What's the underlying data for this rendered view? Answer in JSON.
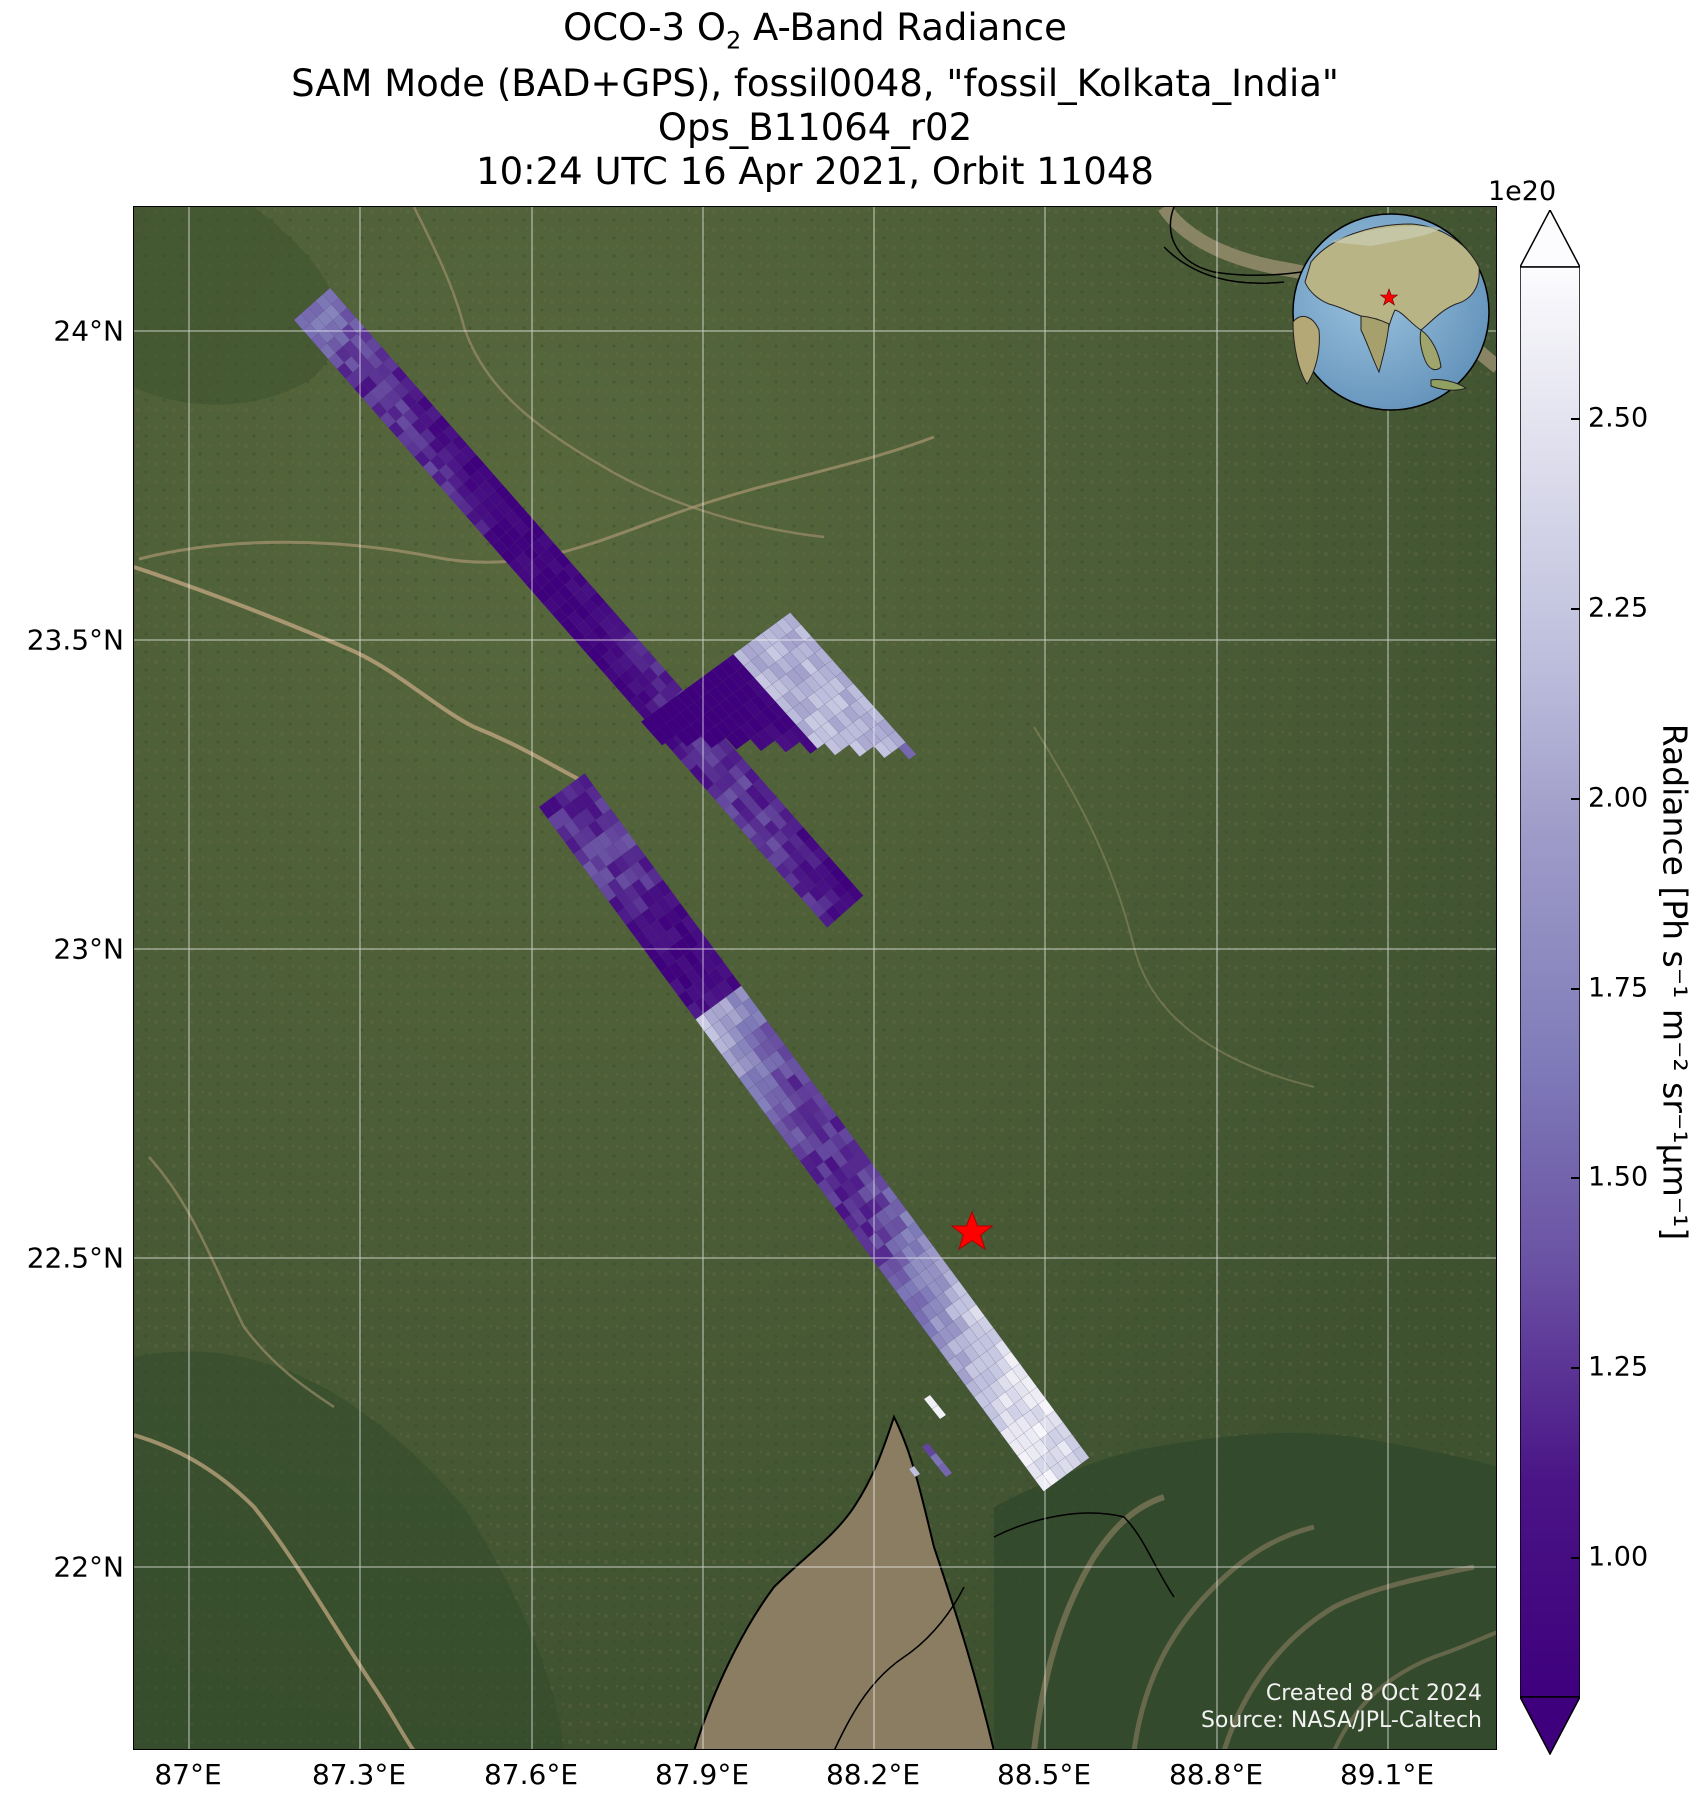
{
  "title": {
    "line1_prefix": "OCO-3 O",
    "line1_sub": "2",
    "line1_suffix": " A-Band Radiance",
    "line2": "SAM Mode (BAD+GPS), fossil0048, \"fossil_Kolkata_India\"",
    "line3": "Ops_B11064_r02",
    "line4": "10:24 UTC 16 Apr 2021, Orbit 11048"
  },
  "map": {
    "lon_ticks": [
      "87°E",
      "87.3°E",
      "87.6°E",
      "87.9°E",
      "88.2°E",
      "88.5°E",
      "88.8°E",
      "89.1°E"
    ],
    "lat_ticks": [
      "24°N",
      "23.5°N",
      "23°N",
      "22.5°N",
      "22°N"
    ],
    "target_marker": "red-star",
    "target_lat": 22.57,
    "target_lon": 88.36,
    "gridlines": true,
    "basemap": "satellite-imagery"
  },
  "credit": {
    "created": "Created 8 Oct 2024",
    "source": "Source: NASA/JPL-Caltech"
  },
  "colorbar": {
    "exponent": "1e20",
    "ticks": [
      "2.50",
      "2.25",
      "2.00",
      "1.75",
      "1.50",
      "1.25",
      "1.00"
    ],
    "tick_values": [
      2.5,
      2.25,
      2.0,
      1.75,
      1.5,
      1.25,
      1.0
    ],
    "range": [
      0.8,
      2.7
    ],
    "label_prefix": "Radiance [Ph s",
    "label_full": "Radiance [Ph s⁻¹ m⁻² sr⁻¹μm⁻¹]",
    "colormap": "Purples_r",
    "extend": "both"
  },
  "colors": {
    "dark_purple": "#3f007d",
    "white": "#fcfbfd",
    "star": "#ff0000"
  }
}
